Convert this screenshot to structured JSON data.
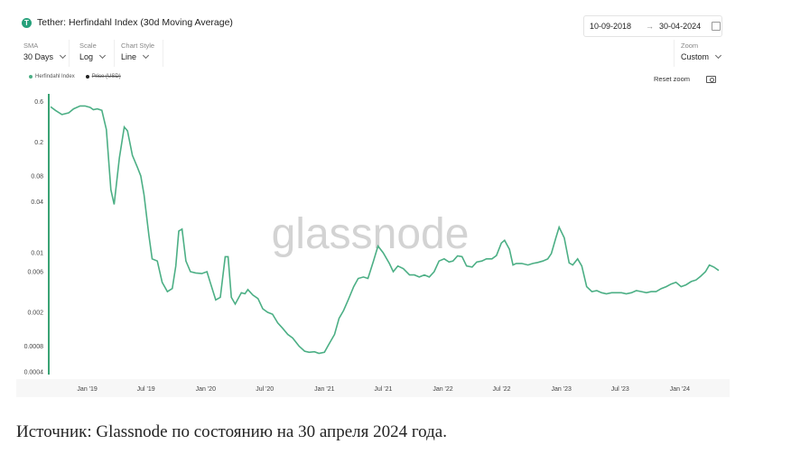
{
  "header": {
    "title": "Tether: Herfindahl Index (30d Moving Average)",
    "date_start": "10-09-2018",
    "date_end": "30-04-2024",
    "arrow": "→"
  },
  "controls": {
    "sma_label": "SMA",
    "sma_value": "30 Days",
    "scale_label": "Scale",
    "scale_value": "Log",
    "style_label": "Chart Style",
    "style_value": "Line",
    "zoom_label": "Zoom",
    "zoom_value": "Custom",
    "reset_zoom": "Reset zoom"
  },
  "icons": {
    "asset": "tether-icon",
    "calendar": "calendar-icon",
    "camera": "camera-icon"
  },
  "watermark": "glassnode",
  "source_note": "Источник: Glassnode по состоянию на 30 апреля 2024 года.",
  "chart_data": {
    "type": "line",
    "scale": "log",
    "title": "Tether: Herfindahl Index (30d Moving Average)",
    "ylim": [
      0.0004,
      0.7
    ],
    "ytick_values": [
      0.6,
      0.2,
      0.08,
      0.04,
      0.01,
      0.006,
      0.002,
      0.0008,
      0.0004
    ],
    "ytick_labels": [
      "0.6",
      "0.2",
      "0.08",
      "0.04",
      "0.01",
      "0.006",
      "0.002",
      "0.0008",
      "0.0004"
    ],
    "xlim": [
      "2018-09-10",
      "2024-04-30"
    ],
    "xtick_dates": [
      "2019-01-01",
      "2019-07-01",
      "2020-01-01",
      "2020-07-01",
      "2021-01-01",
      "2021-07-01",
      "2022-01-01",
      "2022-07-01",
      "2023-01-01",
      "2023-07-01",
      "2024-01-01"
    ],
    "xtick_labels": [
      "Jan '19",
      "Jul '19",
      "Jan '20",
      "Jul '20",
      "Jan '21",
      "Jul '21",
      "Jan '22",
      "Jul '22",
      "Jan '23",
      "Jul '23",
      "Jan '24"
    ],
    "grid": false,
    "legend_position": "top-left",
    "series": [
      {
        "name": "Herfindahl Index",
        "color": "#4caf85",
        "points": [
          [
            "2018-09-10",
            0.52
          ],
          [
            "2018-09-25",
            0.47
          ],
          [
            "2018-10-15",
            0.42
          ],
          [
            "2018-11-05",
            0.44
          ],
          [
            "2018-11-20",
            0.49
          ],
          [
            "2018-12-10",
            0.53
          ],
          [
            "2018-12-25",
            0.53
          ],
          [
            "2019-01-10",
            0.51
          ],
          [
            "2019-01-20",
            0.48
          ],
          [
            "2019-02-01",
            0.49
          ],
          [
            "2019-02-15",
            0.47
          ],
          [
            "2019-03-01",
            0.28
          ],
          [
            "2019-03-15",
            0.055
          ],
          [
            "2019-03-25",
            0.037
          ],
          [
            "2019-04-10",
            0.13
          ],
          [
            "2019-04-25",
            0.3
          ],
          [
            "2019-05-05",
            0.27
          ],
          [
            "2019-05-20",
            0.14
          ],
          [
            "2019-06-05",
            0.1
          ],
          [
            "2019-06-15",
            0.08
          ],
          [
            "2019-06-25",
            0.048
          ],
          [
            "2019-07-10",
            0.016
          ],
          [
            "2019-07-20",
            0.0085
          ],
          [
            "2019-08-05",
            0.008
          ],
          [
            "2019-08-20",
            0.0045
          ],
          [
            "2019-09-05",
            0.0035
          ],
          [
            "2019-09-20",
            0.0038
          ],
          [
            "2019-10-01",
            0.007
          ],
          [
            "2019-10-10",
            0.018
          ],
          [
            "2019-10-20",
            0.019
          ],
          [
            "2019-11-01",
            0.008
          ],
          [
            "2019-11-15",
            0.006
          ],
          [
            "2019-12-01",
            0.0058
          ],
          [
            "2019-12-20",
            0.0057
          ],
          [
            "2020-01-05",
            0.006
          ],
          [
            "2020-01-15",
            0.0045
          ],
          [
            "2020-02-01",
            0.0028
          ],
          [
            "2020-02-15",
            0.003
          ],
          [
            "2020-03-01",
            0.009
          ],
          [
            "2020-03-10",
            0.009
          ],
          [
            "2020-03-20",
            0.003
          ],
          [
            "2020-04-01",
            0.0025
          ],
          [
            "2020-04-20",
            0.0034
          ],
          [
            "2020-05-01",
            0.0033
          ],
          [
            "2020-05-10",
            0.0037
          ],
          [
            "2020-05-25",
            0.0032
          ],
          [
            "2020-06-10",
            0.0029
          ],
          [
            "2020-06-25",
            0.0022
          ],
          [
            "2020-07-10",
            0.002
          ],
          [
            "2020-07-25",
            0.0019
          ],
          [
            "2020-08-10",
            0.0015
          ],
          [
            "2020-08-25",
            0.0013
          ],
          [
            "2020-09-10",
            0.0011
          ],
          [
            "2020-09-25",
            0.001
          ],
          [
            "2020-10-15",
            0.0008
          ],
          [
            "2020-11-01",
            0.0007
          ],
          [
            "2020-11-15",
            0.00068
          ],
          [
            "2020-12-01",
            0.00069
          ],
          [
            "2020-12-15",
            0.00066
          ],
          [
            "2021-01-01",
            0.00068
          ],
          [
            "2021-01-15",
            0.00085
          ],
          [
            "2021-02-01",
            0.0011
          ],
          [
            "2021-02-15",
            0.0017
          ],
          [
            "2021-03-01",
            0.0021
          ],
          [
            "2021-03-15",
            0.0028
          ],
          [
            "2021-04-01",
            0.004
          ],
          [
            "2021-04-15",
            0.005
          ],
          [
            "2021-05-01",
            0.0052
          ],
          [
            "2021-05-15",
            0.005
          ],
          [
            "2021-06-01",
            0.008
          ],
          [
            "2021-06-15",
            0.012
          ],
          [
            "2021-07-01",
            0.01
          ],
          [
            "2021-07-20",
            0.0075
          ],
          [
            "2021-08-01",
            0.006
          ],
          [
            "2021-08-15",
            0.007
          ],
          [
            "2021-09-01",
            0.0065
          ],
          [
            "2021-09-20",
            0.0055
          ],
          [
            "2021-10-05",
            0.0055
          ],
          [
            "2021-10-20",
            0.0052
          ],
          [
            "2021-11-05",
            0.0055
          ],
          [
            "2021-11-20",
            0.0052
          ],
          [
            "2021-12-05",
            0.006
          ],
          [
            "2021-12-20",
            0.008
          ],
          [
            "2022-01-05",
            0.0085
          ],
          [
            "2022-01-20",
            0.0078
          ],
          [
            "2022-02-01",
            0.008
          ],
          [
            "2022-02-15",
            0.0092
          ],
          [
            "2022-03-01",
            0.009
          ],
          [
            "2022-03-15",
            0.007
          ],
          [
            "2022-04-01",
            0.0068
          ],
          [
            "2022-04-15",
            0.0078
          ],
          [
            "2022-05-01",
            0.008
          ],
          [
            "2022-05-15",
            0.0085
          ],
          [
            "2022-06-01",
            0.0085
          ],
          [
            "2022-06-15",
            0.0093
          ],
          [
            "2022-06-30",
            0.013
          ],
          [
            "2022-07-10",
            0.014
          ],
          [
            "2022-07-25",
            0.011
          ],
          [
            "2022-08-05",
            0.0072
          ],
          [
            "2022-08-15",
            0.0075
          ],
          [
            "2022-09-01",
            0.0075
          ],
          [
            "2022-09-20",
            0.0072
          ],
          [
            "2022-10-05",
            0.0075
          ],
          [
            "2022-10-20",
            0.0077
          ],
          [
            "2022-11-05",
            0.008
          ],
          [
            "2022-11-20",
            0.0085
          ],
          [
            "2022-12-01",
            0.0098
          ],
          [
            "2022-12-15",
            0.015
          ],
          [
            "2022-12-25",
            0.02
          ],
          [
            "2023-01-10",
            0.015
          ],
          [
            "2023-01-25",
            0.0076
          ],
          [
            "2023-02-05",
            0.0072
          ],
          [
            "2023-02-20",
            0.0085
          ],
          [
            "2023-03-05",
            0.007
          ],
          [
            "2023-03-20",
            0.004
          ],
          [
            "2023-04-05",
            0.0035
          ],
          [
            "2023-04-20",
            0.0036
          ],
          [
            "2023-05-05",
            0.0034
          ],
          [
            "2023-05-20",
            0.0033
          ],
          [
            "2023-06-05",
            0.0034
          ],
          [
            "2023-06-20",
            0.0034
          ],
          [
            "2023-07-05",
            0.0034
          ],
          [
            "2023-07-20",
            0.0033
          ],
          [
            "2023-08-05",
            0.0034
          ],
          [
            "2023-08-20",
            0.0036
          ],
          [
            "2023-09-05",
            0.0035
          ],
          [
            "2023-09-20",
            0.0034
          ],
          [
            "2023-10-05",
            0.0035
          ],
          [
            "2023-10-20",
            0.0035
          ],
          [
            "2023-11-05",
            0.0038
          ],
          [
            "2023-11-20",
            0.004
          ],
          [
            "2023-12-05",
            0.0043
          ],
          [
            "2023-12-20",
            0.0045
          ],
          [
            "2024-01-05",
            0.004
          ],
          [
            "2024-01-20",
            0.0042
          ],
          [
            "2024-02-05",
            0.0046
          ],
          [
            "2024-02-20",
            0.0048
          ],
          [
            "2024-03-05",
            0.0053
          ],
          [
            "2024-03-20",
            0.006
          ],
          [
            "2024-04-01",
            0.0072
          ],
          [
            "2024-04-15",
            0.0068
          ],
          [
            "2024-04-30",
            0.0062
          ]
        ]
      },
      {
        "name": "Price (USD)",
        "color": "#222222",
        "points": []
      }
    ]
  }
}
